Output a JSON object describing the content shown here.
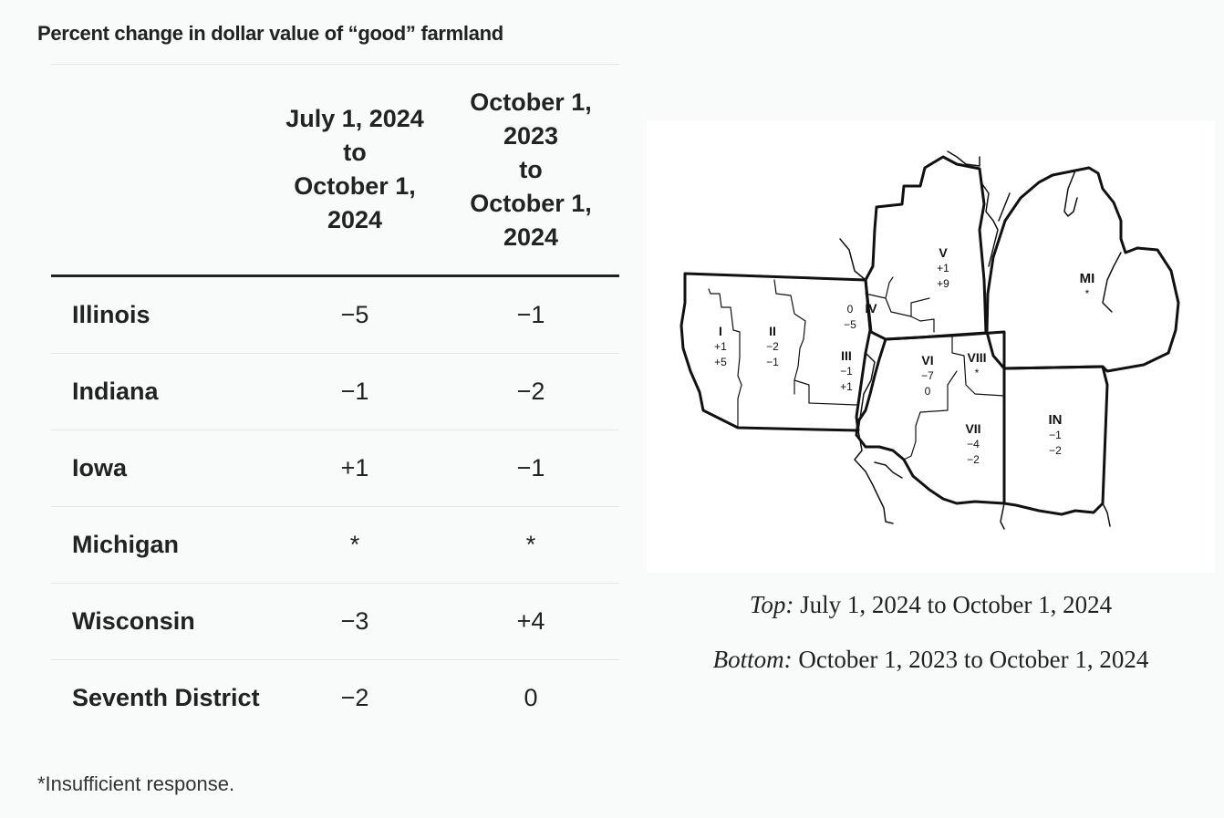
{
  "title": "Percent change in dollar value of “good” farmland",
  "table": {
    "columns": [
      "July 1, 2024\nto\nOctober 1,\n2024",
      "October 1,\n2023\nto\nOctober 1,\n2024"
    ],
    "rows": [
      {
        "name": "Illinois",
        "v1": "−5",
        "v2": "−1"
      },
      {
        "name": "Indiana",
        "v1": "−1",
        "v2": "−2"
      },
      {
        "name": "Iowa",
        "v1": "+1",
        "v2": "−1"
      },
      {
        "name": "Michigan",
        "v1": "*",
        "v2": "*"
      },
      {
        "name": "Wisconsin",
        "v1": "−3",
        "v2": "+4"
      },
      {
        "name": "Seventh District",
        "v1": "−2",
        "v2": "0"
      }
    ]
  },
  "footnote": "*Insufficient response.",
  "map": {
    "regions": [
      {
        "label": "I",
        "top": "+1",
        "bottom": "+5"
      },
      {
        "label": "II",
        "top": "−2",
        "bottom": "−1"
      },
      {
        "label": "III",
        "top": "−1",
        "bottom": "+1"
      },
      {
        "label": "IV",
        "top": "0",
        "bottom": "−5"
      },
      {
        "label": "V",
        "top": "+1",
        "bottom": "+9"
      },
      {
        "label": "VI",
        "top": "−7",
        "bottom": "0"
      },
      {
        "label": "VII",
        "top": "−4",
        "bottom": "−2"
      },
      {
        "label": "VIII",
        "top": "*",
        "bottom": ""
      },
      {
        "label": "IN",
        "top": "−1",
        "bottom": "−2"
      },
      {
        "label": "MI",
        "top": "*",
        "bottom": ""
      }
    ]
  },
  "captions": {
    "top_label": "Top:",
    "top_text": " July 1, 2024 to October 1, 2024",
    "bottom_label": "Bottom:",
    "bottom_text": " October 1, 2023 to October 1, 2024"
  }
}
